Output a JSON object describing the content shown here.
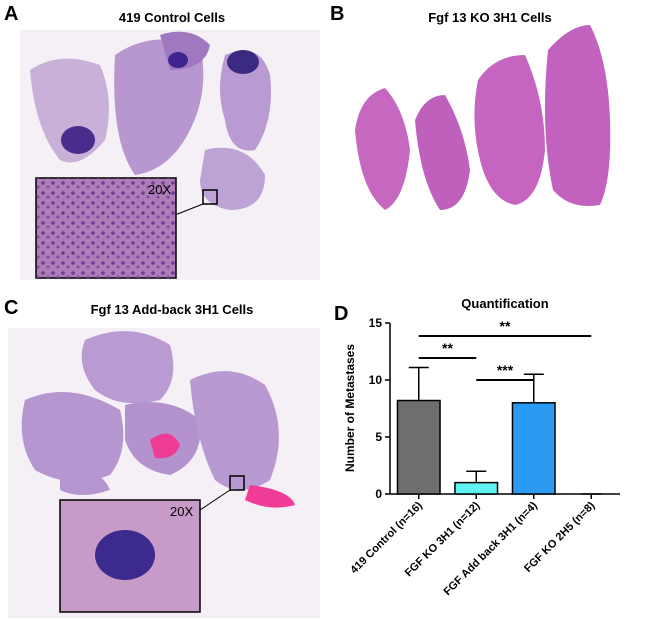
{
  "panels": [
    {
      "letter": "A",
      "title": "419 Control Cells",
      "inset_label": "20X"
    },
    {
      "letter": "B",
      "title": "Fgf 13 KO  3H1 Cells"
    },
    {
      "letter": "C",
      "title": "Fgf 13 Add-back  3H1 Cells",
      "inset_label": "20X"
    }
  ],
  "chart_data": {
    "type": "bar",
    "letter": "D",
    "title": "Quantification",
    "y_label": "Number of Metastases",
    "categories": [
      "419 Control (n=16)",
      "FGF KO 3H1 (n=12)",
      "FGF Add back 3H1 (n=4)",
      "FGF KO 2H5 (n=8)"
    ],
    "values": [
      8.2,
      1.0,
      8.0,
      0
    ],
    "errors": [
      2.9,
      1.0,
      2.5,
      0
    ],
    "colors": [
      "#6e6e6e",
      "#5ff3f3",
      "#2a9af2",
      "#2a9af2"
    ],
    "ylim": [
      0,
      15
    ],
    "yticks": [
      0,
      5,
      10,
      15
    ],
    "annotations": [
      "**",
      "***",
      "**"
    ]
  }
}
